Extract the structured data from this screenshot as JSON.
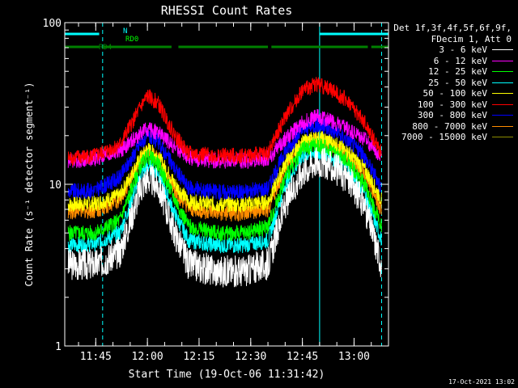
{
  "chart_data": {
    "type": "line",
    "title": "RHESSI Count Rates",
    "xlabel": "Start Time (19-Oct-06 11:31:42)",
    "ylabel": "Count Rate (s⁻¹ detector segment⁻¹)",
    "y_scale": "log",
    "ylim": [
      1,
      100
    ],
    "y_ticks": [
      "1",
      "10",
      "100"
    ],
    "x_range_minutes": [
      "11:36",
      "13:10"
    ],
    "x_ticks": [
      "11:45",
      "12:00",
      "12:15",
      "12:30",
      "12:45",
      "13:00"
    ],
    "legend_header": [
      "Det 1f,3f,4f,5f,6f,9f,",
      "FDecim 1, Att 0"
    ],
    "series": [
      {
        "name": "3 - 6 keV",
        "color": "#ffffff",
        "x": [
          "11:37",
          "11:45",
          "11:52",
          "11:58",
          "12:00",
          "12:03",
          "12:08",
          "12:12",
          "12:20",
          "12:28",
          "12:35",
          "12:40",
          "12:45",
          "12:49",
          "12:53",
          "12:58",
          "13:03",
          "13:08"
        ],
        "y": [
          3.2,
          3.2,
          3.8,
          9.5,
          11.0,
          10.0,
          5.0,
          3.2,
          2.9,
          2.9,
          3.2,
          7.5,
          12.0,
          14.0,
          13.0,
          11.0,
          7.5,
          3.2
        ]
      },
      {
        "name": "6 - 12 keV",
        "color": "#ff00ff",
        "x": [
          "11:37",
          "11:45",
          "11:52",
          "11:58",
          "12:00",
          "12:03",
          "12:08",
          "12:12",
          "12:20",
          "12:28",
          "12:35",
          "12:40",
          "12:45",
          "12:49",
          "12:53",
          "12:58",
          "13:03",
          "13:08"
        ],
        "y": [
          14.0,
          14.5,
          16.0,
          20.5,
          22.0,
          21.0,
          17.0,
          14.5,
          14.0,
          14.0,
          14.5,
          19.0,
          24.0,
          26.5,
          25.0,
          22.0,
          19.0,
          15.0
        ]
      },
      {
        "name": "12 - 25 keV",
        "color": "#00ff00",
        "x": [
          "11:37",
          "11:45",
          "11:52",
          "11:58",
          "12:00",
          "12:03",
          "12:08",
          "12:12",
          "12:20",
          "12:28",
          "12:35",
          "12:40",
          "12:45",
          "12:49",
          "12:53",
          "12:58",
          "13:03",
          "13:08"
        ],
        "y": [
          5.0,
          5.0,
          6.0,
          13.0,
          15.0,
          13.5,
          8.0,
          5.5,
          5.0,
          5.0,
          5.5,
          11.0,
          16.5,
          17.5,
          16.5,
          14.0,
          10.0,
          5.5
        ]
      },
      {
        "name": "25 - 50 keV",
        "color": "#00ffff",
        "x": [
          "11:37",
          "11:45",
          "11:52",
          "11:58",
          "12:00",
          "12:03",
          "12:08",
          "12:12",
          "12:20",
          "12:28",
          "12:35",
          "12:40",
          "12:45",
          "12:49",
          "12:53",
          "12:58",
          "13:03",
          "13:08"
        ],
        "y": [
          4.2,
          4.3,
          5.0,
          11.5,
          13.0,
          12.0,
          6.5,
          4.5,
          4.2,
          4.2,
          4.5,
          10.0,
          15.0,
          16.0,
          15.0,
          12.5,
          9.0,
          4.5
        ]
      },
      {
        "name": "50 - 100 keV",
        "color": "#ffff00",
        "x": [
          "11:37",
          "11:45",
          "11:52",
          "11:58",
          "12:00",
          "12:03",
          "12:08",
          "12:12",
          "12:20",
          "12:28",
          "12:35",
          "12:40",
          "12:45",
          "12:49",
          "12:53",
          "12:58",
          "13:03",
          "13:08"
        ],
        "y": [
          7.5,
          7.6,
          8.5,
          14.5,
          16.5,
          15.0,
          10.0,
          7.8,
          7.5,
          7.5,
          7.8,
          13.5,
          18.0,
          19.5,
          18.5,
          16.0,
          12.5,
          8.0
        ]
      },
      {
        "name": "100 - 300 keV",
        "color": "#ff0000",
        "x": [
          "11:37",
          "11:45",
          "11:52",
          "11:58",
          "12:00",
          "12:03",
          "12:08",
          "12:12",
          "12:20",
          "12:28",
          "12:35",
          "12:40",
          "12:45",
          "12:49",
          "12:53",
          "12:58",
          "13:03",
          "13:08"
        ],
        "y": [
          14.5,
          15.0,
          17.5,
          30.0,
          35.0,
          32.0,
          20.0,
          15.5,
          15.0,
          15.0,
          15.5,
          26.0,
          38.0,
          42.0,
          39.0,
          33.0,
          24.0,
          15.5
        ]
      },
      {
        "name": "300 - 800 keV",
        "color": "#0000ff",
        "x": [
          "11:37",
          "11:45",
          "11:52",
          "11:58",
          "12:00",
          "12:03",
          "12:08",
          "12:12",
          "12:20",
          "12:28",
          "12:35",
          "12:40",
          "12:45",
          "12:49",
          "12:53",
          "12:58",
          "13:03",
          "13:08"
        ],
        "y": [
          9.0,
          9.2,
          11.0,
          18.0,
          20.0,
          18.5,
          12.5,
          9.5,
          9.0,
          9.0,
          9.5,
          16.0,
          21.5,
          23.5,
          22.0,
          19.0,
          15.0,
          9.5
        ]
      },
      {
        "name": "800 - 7000 keV",
        "color": "#ff8c00",
        "x": [
          "11:37",
          "11:45",
          "11:52",
          "11:58",
          "12:00",
          "12:03",
          "12:08",
          "12:12",
          "12:20",
          "12:28",
          "12:35",
          "12:40",
          "12:45",
          "12:49",
          "12:53",
          "12:58",
          "13:03",
          "13:08"
        ],
        "y": [
          6.8,
          6.9,
          8.0,
          14.0,
          16.0,
          14.5,
          9.0,
          7.0,
          6.6,
          6.6,
          7.0,
          12.5,
          17.5,
          18.5,
          17.5,
          15.0,
          11.5,
          7.0
        ]
      },
      {
        "name": "7000 - 15000 keV",
        "color": "#8b8b00",
        "x": [],
        "y": []
      }
    ],
    "flag_bars": [
      {
        "label": "N",
        "color": "#00ffff",
        "segments": [
          [
            "11:36",
            "11:46"
          ],
          [
            "12:50",
            "13:10"
          ]
        ]
      },
      {
        "label": "RD0",
        "color": "#00ff00",
        "segments": []
      },
      {
        "label": "RD4",
        "color": "#008000",
        "segments": [
          [
            "11:36",
            "11:46"
          ],
          [
            "11:47",
            "12:07"
          ],
          [
            "12:09",
            "12:35"
          ],
          [
            "12:36",
            "13:04"
          ],
          [
            "13:05",
            "13:10"
          ]
        ]
      }
    ],
    "cyan_vertical_lines": [
      {
        "time": "11:36",
        "style": "solid"
      },
      {
        "time": "11:47",
        "style": "dashed"
      },
      {
        "time": "12:50",
        "style": "solid"
      },
      {
        "time": "13:08",
        "style": "dashed"
      }
    ]
  },
  "footer_date": "17-Oct-2021 13:02"
}
